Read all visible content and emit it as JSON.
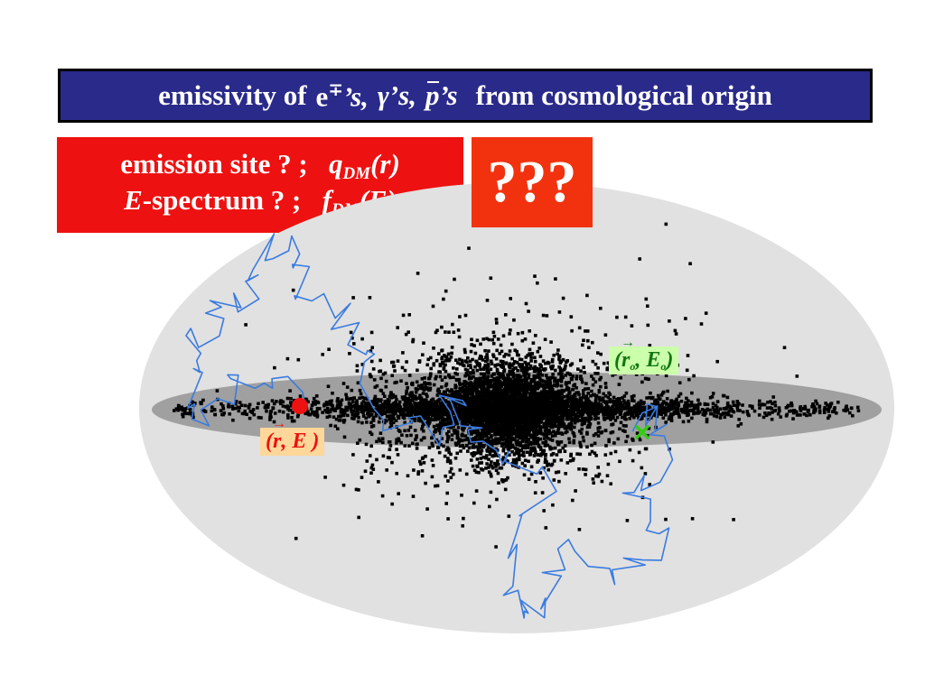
{
  "title": {
    "prefix": "emissivity of",
    "e": "e",
    "e_sup": "∓",
    "e_suffix": "’s,",
    "gamma": "γ’s,",
    "p": "p",
    "p_suffix": "’s",
    "suffix": "from cosmological origin"
  },
  "question": {
    "line1_text": "emission site ? ;",
    "line1_func": "q",
    "line1_sub": "DM",
    "line1_arg": "(r)",
    "line2_E": "E",
    "line2_text": "-spectrum ? ;",
    "line2_func": "f",
    "line2_sub": "DM",
    "line2_arg": "(E)"
  },
  "unknown": "???",
  "observer_label": {
    "open": "(",
    "r": "r",
    "r_sub": "o",
    "comma": ", ",
    "E": "E",
    "E_sub": "o",
    "close": ")"
  },
  "source_label": {
    "open": "(",
    "r": "r",
    "comma": ", ",
    "E": "E",
    "close": " )"
  },
  "colors": {
    "title_bg": "#2a2a8a",
    "question_bg": "#ee1111",
    "unknown_bg": "#f2320f",
    "halo": "#e1e1e1",
    "disk": "#a0a0a0",
    "path": "#3a7be0",
    "source_marker": "#ee1111",
    "observer_marker": "#33cc11"
  },
  "icons": {
    "source": "red-dot",
    "observer": "green-cross"
  }
}
